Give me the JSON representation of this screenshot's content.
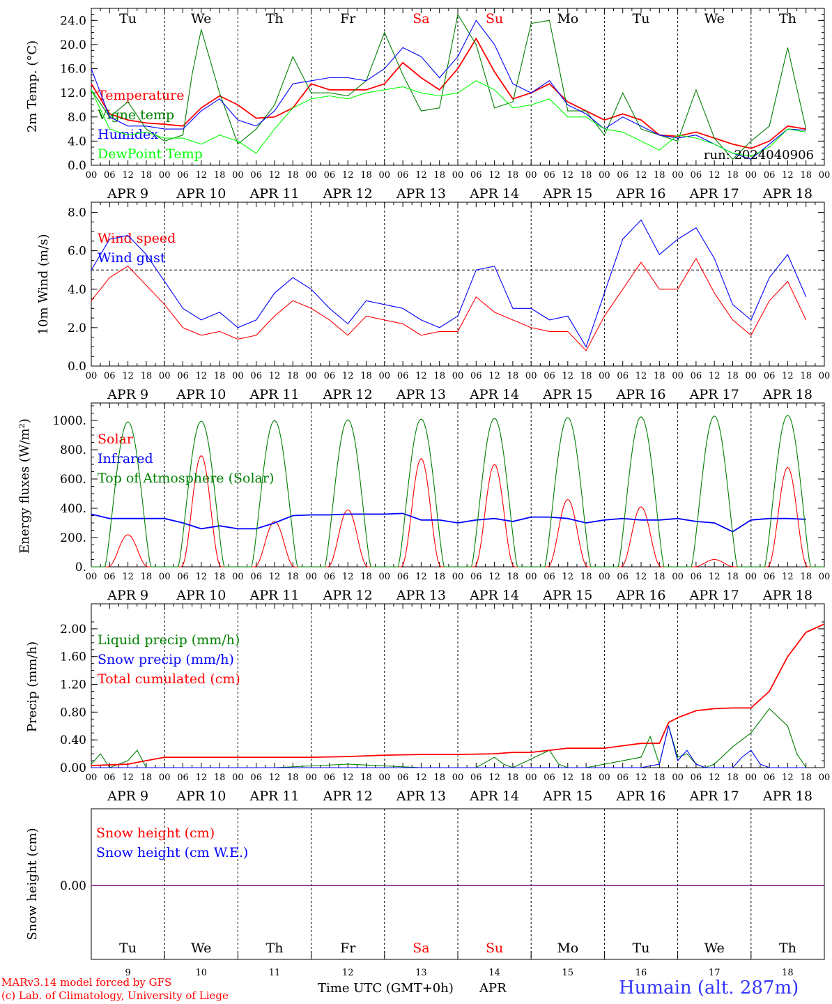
{
  "footer": {
    "model": "MARv3.14 model forced by GFS",
    "lab": "(c) Lab. of Climatology, University of Liege",
    "xlabel": "Time UTC (GMT+0h)",
    "month": "APR",
    "station": "Humain (alt. 287m)"
  },
  "run_label": "run: 2024040906",
  "days": {
    "weekdays": [
      "Tu",
      "We",
      "Th",
      "Fr",
      "Sa",
      "Su",
      "Mo",
      "Tu",
      "We",
      "Th"
    ],
    "weekday_colors": [
      "#000000",
      "#000000",
      "#000000",
      "#000000",
      "#ff0000",
      "#ff0000",
      "#000000",
      "#000000",
      "#000000",
      "#000000"
    ],
    "date_labels": [
      "APR  9",
      "APR 10",
      "APR 11",
      "APR 12",
      "APR 13",
      "APR 14",
      "APR 15",
      "APR 16",
      "APR 17",
      "APR 18"
    ],
    "day_numbers": [
      "9",
      "10",
      "11",
      "12",
      "13",
      "14",
      "15",
      "16",
      "17",
      "18"
    ],
    "hour_ticks": [
      "00",
      "06",
      "12",
      "18"
    ],
    "last_tick": "00"
  },
  "chart_data": [
    {
      "type": "line",
      "ylabel": "2m Temp. (°C)",
      "ylim": [
        0,
        26
      ],
      "yticks": [
        "0.0",
        "4.0",
        "8.0",
        "12.0",
        "16.0",
        "20.0",
        "24.0"
      ],
      "ytick_values": [
        0,
        4,
        8,
        12,
        16,
        20,
        24
      ],
      "x_unit": "hours since APR 9 00 UTC",
      "series": [
        {
          "name": "Temperature",
          "color": "#ff0000",
          "x": [
            0,
            6,
            12,
            18,
            24,
            30,
            36,
            42,
            48,
            54,
            60,
            66,
            72,
            78,
            84,
            90,
            96,
            102,
            108,
            114,
            120,
            126,
            132,
            138,
            144,
            150,
            156,
            162,
            168,
            174,
            180,
            186,
            192,
            198,
            204,
            210,
            216,
            222,
            228,
            234
          ],
          "y": [
            13.5,
            8.5,
            7.5,
            7.0,
            6.8,
            6.5,
            9.5,
            11.5,
            10.0,
            7.8,
            8.0,
            9.5,
            13.5,
            12.5,
            12.5,
            12.5,
            13.5,
            17.0,
            14.5,
            12.5,
            16.0,
            21.0,
            15.5,
            11.0,
            12.0,
            13.5,
            10.5,
            9.0,
            7.5,
            8.5,
            7.5,
            5.0,
            4.8,
            5.5,
            4.5,
            3.5,
            2.8,
            4.0,
            6.5,
            6.0
          ]
        },
        {
          "name": "Vigne temp",
          "color": "#008000",
          "x": [
            0,
            6,
            12,
            18,
            24,
            30,
            33,
            36,
            42,
            48,
            54,
            60,
            66,
            72,
            78,
            84,
            90,
            96,
            102,
            108,
            114,
            120,
            126,
            132,
            138,
            144,
            150,
            156,
            162,
            168,
            174,
            180,
            186,
            192,
            198,
            204,
            210,
            216,
            222,
            228,
            234
          ],
          "y": [
            12.5,
            8.0,
            10.5,
            6.0,
            4.0,
            5.0,
            15.0,
            22.5,
            12.0,
            3.5,
            6.0,
            10.0,
            18.0,
            12.0,
            12.0,
            11.5,
            14.0,
            22.0,
            15.0,
            9.0,
            9.5,
            25.0,
            20.0,
            9.5,
            10.5,
            23.5,
            24.0,
            9.0,
            9.0,
            5.0,
            12.0,
            6.0,
            5.0,
            4.0,
            12.5,
            4.5,
            1.0,
            4.0,
            6.5,
            19.5,
            6.0
          ]
        },
        {
          "name": "Humidex",
          "color": "#0000ff",
          "x": [
            0,
            6,
            12,
            18,
            24,
            30,
            36,
            42,
            48,
            54,
            60,
            66,
            72,
            78,
            84,
            90,
            96,
            102,
            108,
            114,
            120,
            126,
            132,
            138,
            144,
            150,
            156,
            162,
            168,
            174,
            180,
            186,
            192,
            198,
            204,
            210,
            216,
            222,
            228,
            234
          ],
          "y": [
            16.0,
            8.0,
            6.5,
            6.5,
            6.0,
            6.0,
            9.0,
            11.0,
            7.5,
            6.5,
            9.0,
            13.5,
            14.0,
            14.5,
            14.5,
            14.0,
            16.0,
            19.5,
            18.0,
            14.5,
            18.0,
            24.0,
            20.0,
            13.5,
            12.0,
            14.0,
            10.0,
            8.5,
            6.0,
            8.0,
            6.5,
            5.0,
            4.5,
            5.0,
            3.5,
            2.0,
            1.0,
            3.5,
            6.0,
            5.8
          ]
        },
        {
          "name": "DewPoint Temp",
          "color": "#00ff00",
          "x": [
            0,
            6,
            12,
            18,
            24,
            30,
            36,
            42,
            48,
            54,
            60,
            66,
            72,
            78,
            84,
            90,
            96,
            102,
            108,
            114,
            120,
            126,
            132,
            138,
            144,
            150,
            156,
            162,
            168,
            174,
            180,
            186,
            192,
            198,
            204,
            210,
            216,
            222,
            228,
            234
          ],
          "y": [
            12.5,
            6.0,
            5.0,
            5.5,
            4.5,
            4.5,
            3.5,
            5.0,
            4.0,
            2.0,
            6.0,
            9.5,
            11.0,
            11.5,
            11.0,
            12.0,
            12.5,
            13.0,
            12.0,
            11.5,
            12.0,
            14.0,
            12.5,
            9.5,
            10.0,
            11.0,
            8.0,
            8.0,
            6.0,
            5.5,
            4.0,
            2.5,
            5.0,
            4.5,
            3.5,
            2.0,
            1.5,
            3.0,
            6.0,
            5.5
          ]
        }
      ]
    },
    {
      "type": "line",
      "ylabel": "10m Wind (m/s)",
      "ylim": [
        0,
        8.2
      ],
      "yticks": [
        "0.0",
        "2.0",
        "4.0",
        "6.0",
        "8.0"
      ],
      "ytick_values": [
        0,
        2,
        4,
        6,
        8
      ],
      "reference_line": 5.0,
      "series": [
        {
          "name": "Wind speed",
          "color": "#ff0000",
          "x": [
            0,
            6,
            12,
            18,
            24,
            30,
            36,
            42,
            48,
            54,
            60,
            66,
            72,
            78,
            84,
            90,
            96,
            102,
            108,
            114,
            120,
            126,
            132,
            138,
            144,
            150,
            156,
            162,
            168,
            174,
            180,
            186,
            192,
            198,
            204,
            210,
            216,
            222,
            228,
            234
          ],
          "y": [
            3.4,
            4.6,
            5.2,
            4.2,
            3.2,
            2.0,
            1.6,
            1.8,
            1.4,
            1.6,
            2.6,
            3.4,
            3.0,
            2.4,
            1.6,
            2.6,
            2.4,
            2.2,
            1.6,
            1.8,
            1.8,
            3.6,
            2.8,
            2.4,
            2.0,
            1.8,
            1.8,
            0.8,
            2.6,
            4.0,
            5.4,
            4.0,
            4.0,
            5.6,
            3.8,
            2.4,
            1.6,
            3.4,
            4.4,
            2.4
          ]
        },
        {
          "name": "Wind gust",
          "color": "#0000ff",
          "x": [
            0,
            6,
            12,
            18,
            24,
            30,
            36,
            42,
            48,
            54,
            60,
            66,
            72,
            78,
            84,
            90,
            96,
            102,
            108,
            114,
            120,
            126,
            132,
            138,
            144,
            150,
            156,
            162,
            168,
            174,
            180,
            186,
            192,
            198,
            204,
            210,
            216,
            222,
            228,
            234
          ],
          "y": [
            5.0,
            6.6,
            6.8,
            5.8,
            4.4,
            3.0,
            2.4,
            2.8,
            2.0,
            2.4,
            3.8,
            4.6,
            4.0,
            3.0,
            2.2,
            3.4,
            3.2,
            3.0,
            2.4,
            2.0,
            2.6,
            5.0,
            5.2,
            3.0,
            3.0,
            2.4,
            2.6,
            1.0,
            3.8,
            6.6,
            7.6,
            5.8,
            6.6,
            7.2,
            5.6,
            3.2,
            2.4,
            4.6,
            5.8,
            3.6
          ]
        }
      ]
    },
    {
      "type": "line",
      "ylabel": "Energy fluxes (W/m²)",
      "ylim": [
        0,
        1100
      ],
      "yticks": [
        "0.",
        "200.",
        "400.",
        "600.",
        "800.",
        "1000."
      ],
      "ytick_values": [
        0,
        200,
        400,
        600,
        800,
        1000
      ],
      "series": [
        {
          "name": "Solar",
          "color": "#ff0000",
          "peaks": [
            220,
            760,
            310,
            390,
            740,
            700,
            460,
            410,
            50,
            680
          ]
        },
        {
          "name": "Infrared",
          "color": "#0000ff",
          "x": [
            0,
            6,
            12,
            18,
            24,
            30,
            36,
            42,
            48,
            54,
            60,
            66,
            72,
            78,
            84,
            90,
            96,
            102,
            108,
            114,
            120,
            126,
            132,
            138,
            144,
            150,
            156,
            162,
            168,
            174,
            180,
            186,
            192,
            198,
            204,
            210,
            216,
            222,
            228,
            234
          ],
          "y": [
            360,
            330,
            330,
            330,
            330,
            300,
            260,
            280,
            260,
            260,
            300,
            350,
            355,
            355,
            360,
            360,
            360,
            365,
            320,
            320,
            300,
            320,
            330,
            310,
            340,
            340,
            330,
            300,
            320,
            330,
            320,
            320,
            330,
            310,
            300,
            240,
            320,
            330,
            330,
            325
          ]
        },
        {
          "name": "Top of Atmosphere (Solar)",
          "color": "#008000",
          "peaks": [
            990,
            995,
            1000,
            1005,
            1010,
            1015,
            1020,
            1025,
            1030,
            1035
          ]
        }
      ]
    },
    {
      "type": "line",
      "ylabel": "Precip (mm/h)",
      "ylim": [
        0,
        2.15
      ],
      "yticks": [
        "0.00",
        "0.40",
        "0.80",
        "1.20",
        "1.60",
        "2.00"
      ],
      "ytick_values": [
        0,
        0.4,
        0.8,
        1.2,
        1.6,
        2.0
      ],
      "series": [
        {
          "name": "Liquid precip (mm/h)",
          "color": "#008000",
          "x": [
            0,
            3,
            6,
            12,
            15,
            18,
            21,
            24,
            60,
            84,
            108,
            114,
            117,
            120,
            126,
            132,
            135,
            138,
            150,
            153,
            156,
            159,
            162,
            180,
            183,
            186,
            189,
            192,
            195,
            198,
            201,
            204,
            210,
            216,
            222,
            228,
            231,
            234
          ],
          "y": [
            0.05,
            0.2,
            0.0,
            0.1,
            0.25,
            0.0,
            0.0,
            0.0,
            0.0,
            0.05,
            0.0,
            0.0,
            0.0,
            0.0,
            0.0,
            0.15,
            0.05,
            0.0,
            0.25,
            0.05,
            0.0,
            0.0,
            0.0,
            0.15,
            0.45,
            0.05,
            0.6,
            0.15,
            0.2,
            0.05,
            0.0,
            0.05,
            0.3,
            0.5,
            0.85,
            0.6,
            0.2,
            0.0
          ]
        },
        {
          "name": "Snow precip (mm/h)",
          "color": "#0000ff",
          "x": [
            0,
            180,
            186,
            189,
            192,
            195,
            198,
            201,
            204,
            210,
            213,
            216,
            219,
            222,
            234
          ],
          "y": [
            0,
            0,
            0.05,
            0.6,
            0.1,
            0.25,
            0.05,
            0.0,
            0.0,
            0.0,
            0.15,
            0.25,
            0.05,
            0.0,
            0.0
          ]
        },
        {
          "name": "Total cumulated (cm)",
          "color": "#ff0000",
          "x": [
            0,
            12,
            18,
            24,
            72,
            84,
            96,
            108,
            120,
            132,
            138,
            144,
            156,
            168,
            180,
            186,
            189,
            192,
            198,
            204,
            210,
            216,
            222,
            228,
            234,
            240
          ],
          "y": [
            0.03,
            0.05,
            0.1,
            0.15,
            0.15,
            0.16,
            0.18,
            0.19,
            0.19,
            0.2,
            0.22,
            0.22,
            0.28,
            0.28,
            0.35,
            0.35,
            0.65,
            0.72,
            0.82,
            0.85,
            0.86,
            0.86,
            1.1,
            1.6,
            1.95,
            2.07
          ]
        }
      ]
    },
    {
      "type": "line",
      "ylabel": "Snow height (cm)",
      "yticks": [
        "0.00"
      ],
      "ytick_values": [
        0
      ],
      "series": [
        {
          "name": "Snow height (cm)",
          "color": "#ff0000",
          "x": [
            0,
            240
          ],
          "y": [
            0,
            0
          ]
        },
        {
          "name": "Snow height (cm W.E.)",
          "color": "#0000ff",
          "x": [
            0,
            240
          ],
          "y": [
            0,
            0
          ]
        }
      ]
    }
  ]
}
